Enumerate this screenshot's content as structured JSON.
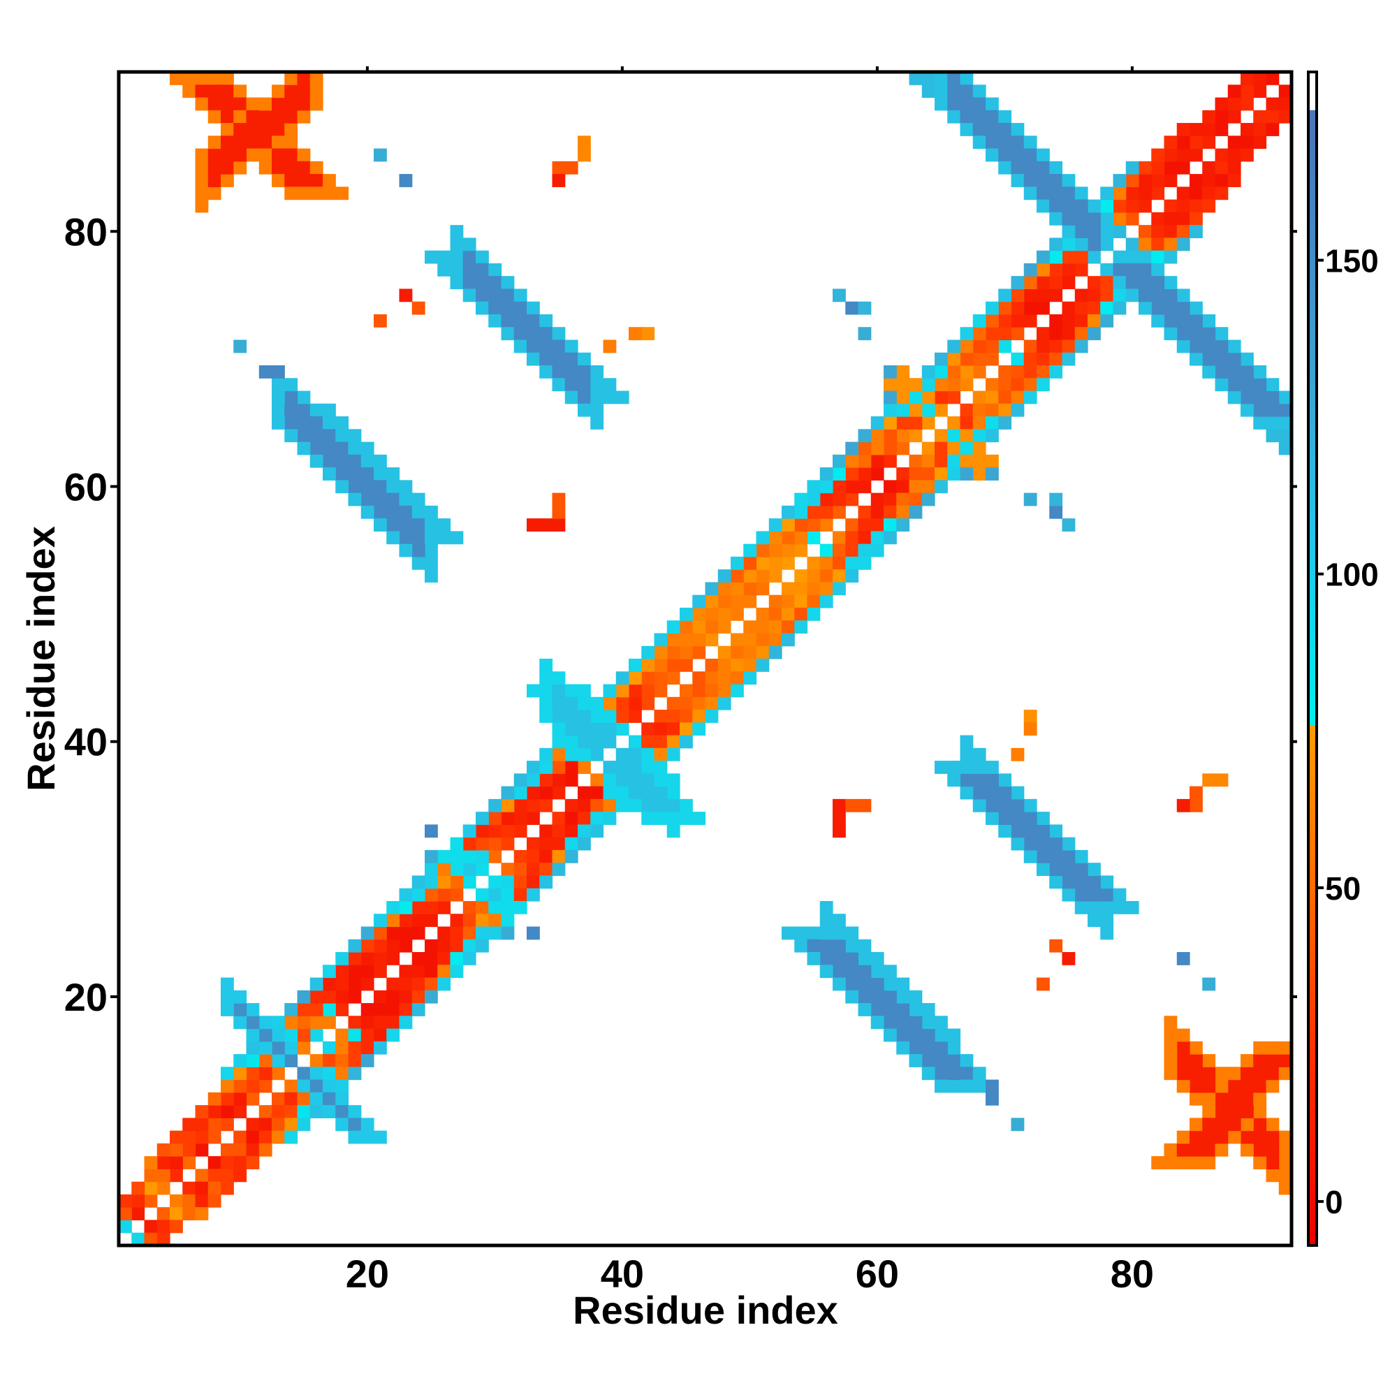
{
  "chart_data": {
    "type": "heatmap",
    "title": "",
    "xlabel": "Residue index",
    "ylabel": "Residue index",
    "xlim": [
      0.5,
      92.5
    ],
    "ylim": [
      0.5,
      92.5
    ],
    "x_ticks": [
      20,
      40,
      60,
      80
    ],
    "y_ticks": [
      20,
      40,
      60,
      80
    ],
    "grid": false,
    "colorbar": {
      "range": [
        -7,
        180
      ],
      "ticks": [
        0,
        50,
        100,
        150
      ],
      "stops": [
        {
          "value": -7,
          "color": "#ee0000"
        },
        {
          "value": 25,
          "color": "#ff3300"
        },
        {
          "value": 50,
          "color": "#ff6a00"
        },
        {
          "value": 75,
          "color": "#ff9a00"
        },
        {
          "value": 78,
          "color": "#00eeee"
        },
        {
          "value": 105,
          "color": "#22c8e8"
        },
        {
          "value": 130,
          "color": "#3ca6d2"
        },
        {
          "value": 155,
          "color": "#4488c4"
        },
        {
          "value": 170,
          "color": "#4a78b8"
        },
        {
          "value": 180,
          "color": "#ffffff"
        }
      ]
    },
    "matrix_size": 92,
    "symmetric": true,
    "cells_note": "",
    "diagonal_bands": [
      {
        "offset": 1,
        "from": 1,
        "to": 91,
        "values": [
          95,
          10,
          45,
          60,
          20,
          50,
          5,
          40,
          35,
          15,
          45,
          40,
          55,
          50,
          60,
          95,
          60,
          20,
          5,
          10,
          15,
          10,
          5,
          5,
          10,
          15,
          40,
          70,
          95,
          50,
          30,
          20,
          10,
          25,
          15,
          5,
          60,
          85,
          70,
          30,
          20,
          35,
          45,
          50,
          40,
          45,
          70,
          65,
          60,
          60,
          55,
          70,
          75,
          70,
          80,
          60,
          45,
          30,
          10,
          5,
          20,
          50,
          70,
          40,
          20,
          30,
          65,
          55,
          45,
          90,
          40,
          15,
          5,
          10,
          10,
          20,
          30,
          85,
          95,
          40,
          15,
          20,
          10,
          5,
          10,
          15,
          5,
          10,
          20,
          10,
          5
        ]
      },
      {
        "offset": 2,
        "from": 1,
        "to": 90,
        "values": [
          40,
          20,
          75,
          50,
          10,
          30,
          25,
          40,
          5,
          10,
          30,
          20,
          40,
          45,
          35,
          60,
          85,
          10,
          5,
          5,
          15,
          10,
          5,
          10,
          20,
          35,
          50,
          90,
          95,
          40,
          25,
          15,
          20,
          5,
          10,
          5,
          70,
          95,
          50,
          30,
          15,
          35,
          45,
          40,
          55,
          60,
          55,
          65,
          60,
          50,
          60,
          70,
          65,
          60,
          45,
          30,
          20,
          10,
          15,
          10,
          40,
          60,
          30,
          15,
          25,
          55,
          70,
          45,
          40,
          30,
          15,
          5,
          10,
          20,
          15,
          30,
          50,
          90,
          60,
          20,
          10,
          15,
          5,
          10,
          20,
          10,
          5,
          15,
          20,
          10
        ]
      },
      {
        "offset": 3,
        "from": 1,
        "to": 89,
        "values": [
          25,
          35,
          50,
          15,
          45,
          30,
          20,
          15,
          25,
          40,
          35,
          50,
          55,
          95,
          50,
          30,
          20,
          15,
          5,
          10,
          20,
          5,
          15,
          20,
          45,
          70,
          95,
          60,
          35,
          20,
          10,
          15,
          10,
          20,
          40,
          95,
          90,
          60,
          25,
          30,
          20,
          40,
          55,
          50,
          60,
          70,
          60,
          55,
          65,
          70,
          75,
          60,
          50,
          40,
          30,
          15,
          20,
          30,
          50,
          60,
          40,
          30,
          35,
          50,
          60,
          50,
          40,
          35,
          30,
          25,
          20,
          10,
          15,
          25,
          30,
          55,
          75,
          95,
          30,
          15,
          10,
          20,
          15,
          5,
          10,
          15,
          10,
          5,
          15
        ]
      },
      {
        "offset": 4,
        "from": 3,
        "to": 84,
        "values": [
          60,
          40,
          30,
          20,
          35,
          50,
          60,
          70,
          85,
          95,
          95,
          60,
          30,
          20,
          10,
          15,
          20,
          30,
          40,
          60,
          80,
          95,
          100,
          60,
          30,
          25,
          15,
          35,
          70,
          95,
          100,
          95,
          60,
          40,
          30,
          50,
          65,
          70,
          75,
          70,
          65,
          60,
          55,
          65,
          70,
          60,
          45,
          40,
          50,
          65,
          75,
          95,
          100,
          95,
          80,
          60,
          45,
          60,
          75,
          95,
          100,
          95,
          90,
          70,
          60,
          50,
          45,
          40,
          35,
          50,
          65,
          80,
          95,
          100,
          95,
          80,
          60,
          40,
          30,
          25,
          20,
          15
        ]
      },
      {
        "offset": 5,
        "from": 9,
        "to": 80,
        "values": [
          95,
          100,
          110,
          95,
          100,
          120,
          130,
          110,
          95,
          100,
          115,
          125,
          100,
          95,
          105,
          110,
          100,
          95,
          100,
          105,
          110,
          115,
          120,
          115,
          110,
          100,
          95,
          100,
          105,
          95,
          100,
          110,
          95,
          100,
          105,
          95,
          100,
          110,
          120,
          115,
          100,
          95,
          100,
          105,
          110,
          95,
          100,
          115,
          120,
          130,
          125,
          110,
          100,
          95,
          100,
          110,
          120,
          115,
          100,
          95,
          100,
          110,
          120,
          130,
          125,
          115,
          100,
          95,
          100,
          110,
          120,
          115
        ]
      }
    ],
    "sheets": [
      {
        "start_i": 7,
        "start_j": 92,
        "end_i": 16,
        "end_j": 83,
        "value": 12,
        "edge_value": 60,
        "width": 3
      },
      {
        "start_i": 13,
        "start_j": 16,
        "end_i": 20,
        "end_j": 9,
        "value": 150,
        "edge_value": 105,
        "width": 2
      },
      {
        "start_i": 15,
        "start_j": 66,
        "end_i": 25,
        "end_j": 56,
        "value": 155,
        "edge_value": 110,
        "width": 3
      },
      {
        "start_i": 27,
        "start_j": 78,
        "end_i": 38,
        "end_j": 67,
        "value": 155,
        "edge_value": 110,
        "width": 3
      },
      {
        "start_i": 35,
        "start_j": 44,
        "end_i": 44,
        "end_j": 34,
        "value": 110,
        "edge_value": 95,
        "width": 3
      },
      {
        "start_i": 27,
        "start_j": 31,
        "end_i": 31,
        "end_j": 27,
        "value": 105,
        "edge_value": 90,
        "width": 2
      },
      {
        "start_i": 55,
        "start_j": 25,
        "end_i": 67,
        "end_j": 13,
        "value": 155,
        "edge_value": 110,
        "width": 3
      },
      {
        "start_i": 67,
        "start_j": 38,
        "end_i": 78,
        "end_j": 27,
        "value": 155,
        "edge_value": 110,
        "width": 3
      },
      {
        "start_i": 65,
        "start_j": 92,
        "end_i": 78,
        "end_j": 79,
        "value": 160,
        "edge_value": 115,
        "width": 3
      },
      {
        "start_i": 79,
        "start_j": 78,
        "end_i": 92,
        "end_j": 65,
        "value": 155,
        "edge_value": 110,
        "width": 3
      },
      {
        "start_i": 62,
        "start_j": 68,
        "end_i": 68,
        "end_j": 62,
        "value": 90,
        "edge_value": 70,
        "width": 2
      },
      {
        "start_i": 84,
        "start_j": 7,
        "end_i": 92,
        "end_j": 16,
        "value": 12,
        "edge_value": 60,
        "width": 3
      }
    ],
    "isolated_cells": [
      {
        "i": 21,
        "j": 86,
        "v": 125
      },
      {
        "i": 23,
        "j": 84,
        "v": 155
      },
      {
        "i": 37,
        "j": 87,
        "v": 65
      },
      {
        "i": 35,
        "j": 85,
        "v": 40
      },
      {
        "i": 36,
        "j": 85,
        "v": 40
      },
      {
        "i": 35,
        "j": 84,
        "v": 10
      },
      {
        "i": 10,
        "j": 71,
        "v": 125
      },
      {
        "i": 12,
        "j": 69,
        "v": 155
      },
      {
        "i": 13,
        "j": 69,
        "v": 155
      },
      {
        "i": 35,
        "j": 59,
        "v": 40
      },
      {
        "i": 34,
        "j": 57,
        "v": 10
      },
      {
        "i": 35,
        "j": 57,
        "v": 10
      },
      {
        "i": 57,
        "j": 75,
        "v": 120
      },
      {
        "i": 58,
        "j": 74,
        "v": 155
      },
      {
        "i": 59,
        "j": 74,
        "v": 125
      },
      {
        "i": 59,
        "j": 72,
        "v": 125
      },
      {
        "i": 61,
        "j": 67,
        "v": 130
      },
      {
        "i": 69,
        "j": 61,
        "v": 130
      },
      {
        "i": 72,
        "j": 59,
        "v": 125
      },
      {
        "i": 74,
        "j": 59,
        "v": 120
      },
      {
        "i": 75,
        "j": 57,
        "v": 120
      },
      {
        "i": 58,
        "j": 35,
        "v": 40
      },
      {
        "i": 57,
        "j": 34,
        "v": 10
      },
      {
        "i": 57,
        "j": 33,
        "v": 10
      },
      {
        "i": 72,
        "j": 42,
        "v": 70
      },
      {
        "i": 72,
        "j": 41,
        "v": 60
      },
      {
        "i": 71,
        "j": 39,
        "v": 60
      },
      {
        "i": 86,
        "j": 37,
        "v": 65
      },
      {
        "i": 85,
        "j": 35,
        "v": 40
      },
      {
        "i": 84,
        "j": 35,
        "v": 10
      },
      {
        "i": 74,
        "j": 24,
        "v": 40
      },
      {
        "i": 75,
        "j": 23,
        "v": 10
      },
      {
        "i": 73,
        "j": 21,
        "v": 40
      },
      {
        "i": 84,
        "j": 23,
        "v": 155
      },
      {
        "i": 86,
        "j": 21,
        "v": 125
      },
      {
        "i": 25,
        "j": 33,
        "v": 155
      },
      {
        "i": 33,
        "j": 25,
        "v": 155
      },
      {
        "i": 31,
        "j": 25,
        "v": 125
      },
      {
        "i": 69,
        "j": 12,
        "v": 155
      },
      {
        "i": 71,
        "j": 10,
        "v": 125
      }
    ]
  }
}
